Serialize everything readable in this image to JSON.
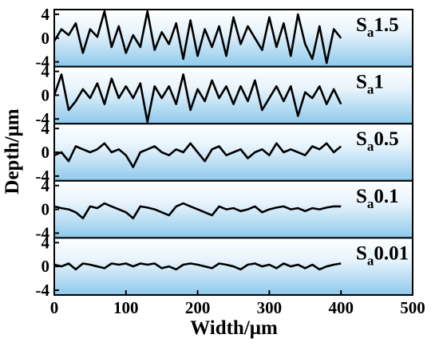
{
  "chart_data": {
    "type": "line",
    "xlabel": "Width/μm",
    "ylabel": "Depth/μm",
    "xlim": [
      0,
      500
    ],
    "ylim": [
      -4.8,
      4.8
    ],
    "x_ticks": [
      "0",
      "100",
      "200",
      "300",
      "400",
      "500"
    ],
    "y_ticks": [
      "4",
      "0",
      "-4"
    ],
    "background": "light-blue vertical gradient",
    "panels": [
      {
        "label": "Sa1.5",
        "label_prefix": "S",
        "label_sub": "a",
        "label_value": "1.5",
        "x": [
          0,
          10,
          20,
          30,
          40,
          50,
          60,
          70,
          80,
          90,
          100,
          110,
          120,
          130,
          140,
          150,
          160,
          170,
          180,
          190,
          200,
          210,
          220,
          230,
          240,
          250,
          260,
          270,
          280,
          290,
          300,
          310,
          320,
          330,
          340,
          350,
          360,
          370,
          380,
          390,
          400
        ],
        "values": [
          -0.5,
          1.5,
          0.5,
          2.5,
          -2.5,
          1.5,
          0.2,
          4.5,
          -1.5,
          2,
          -2.5,
          0.5,
          -1.5,
          4.5,
          -2,
          1,
          -1,
          2.5,
          -3.5,
          3,
          -3,
          1.5,
          -1.5,
          2,
          -3,
          3.5,
          -1,
          2,
          0,
          -2,
          3.5,
          -1.5,
          2.5,
          -3,
          4,
          -1,
          -3.5,
          2,
          -4.2,
          1.5,
          0
        ]
      },
      {
        "label": "Sa1",
        "label_prefix": "S",
        "label_sub": "a",
        "label_value": "1",
        "x": [
          0,
          10,
          20,
          30,
          40,
          50,
          60,
          70,
          80,
          90,
          100,
          110,
          120,
          130,
          140,
          150,
          160,
          170,
          180,
          190,
          200,
          210,
          220,
          230,
          240,
          250,
          260,
          270,
          280,
          290,
          300,
          310,
          320,
          330,
          340,
          350,
          360,
          370,
          380,
          390,
          400
        ],
        "values": [
          0,
          3.5,
          -2.5,
          -1,
          1,
          -0.5,
          2,
          -1.5,
          2.8,
          -0.5,
          1.5,
          -0.5,
          2,
          -4.5,
          1.5,
          -0.5,
          1.5,
          -1.5,
          3.5,
          -2.5,
          1,
          -1,
          2.5,
          -0.5,
          1.5,
          -1.5,
          1.5,
          -1,
          2.5,
          -2.5,
          -0.5,
          1.5,
          -1,
          1.5,
          -3.5,
          0.5,
          -0.5,
          1.5,
          -1.5,
          1,
          -1.5
        ]
      },
      {
        "label": "Sa0.5",
        "label_prefix": "S",
        "label_sub": "a",
        "label_value": "0.5",
        "x": [
          0,
          10,
          20,
          30,
          40,
          50,
          60,
          70,
          80,
          90,
          100,
          110,
          120,
          130,
          140,
          150,
          160,
          170,
          180,
          190,
          200,
          210,
          220,
          230,
          240,
          250,
          260,
          270,
          280,
          290,
          300,
          310,
          320,
          330,
          340,
          350,
          360,
          370,
          380,
          390,
          400
        ],
        "values": [
          -0.5,
          0,
          -1.5,
          1,
          0.5,
          0,
          0.5,
          1.5,
          0,
          0.5,
          -0.5,
          -2.5,
          0,
          0.5,
          1,
          0,
          -0.5,
          0.5,
          0,
          1.5,
          0,
          -1.5,
          0.5,
          1,
          -0.5,
          0,
          0.5,
          -1,
          0,
          0.5,
          -0.5,
          1.5,
          0,
          0.5,
          0,
          -0.5,
          1,
          0.5,
          1.5,
          0,
          1
        ]
      },
      {
        "label": "Sa0.1",
        "label_prefix": "S",
        "label_sub": "a",
        "label_value": "0.1",
        "x": [
          0,
          10,
          20,
          30,
          40,
          50,
          60,
          70,
          80,
          90,
          100,
          110,
          120,
          130,
          140,
          150,
          160,
          170,
          180,
          190,
          200,
          210,
          220,
          230,
          240,
          250,
          260,
          270,
          280,
          290,
          300,
          310,
          320,
          330,
          340,
          350,
          360,
          370,
          380,
          390,
          400
        ],
        "values": [
          0.5,
          0.2,
          0,
          -0.5,
          -1.5,
          0.5,
          0.2,
          1,
          0.5,
          0,
          -0.5,
          -1.5,
          0.5,
          0.3,
          0,
          -0.5,
          -1,
          0.5,
          1,
          0.5,
          0,
          -0.5,
          -1,
          0.5,
          0,
          0.2,
          -0.3,
          0,
          0.5,
          -0.5,
          0,
          0.3,
          0.5,
          0,
          0.2,
          -0.3,
          0.2,
          0,
          0.3,
          0.5,
          0.5
        ]
      },
      {
        "label": "Sa0.01",
        "label_prefix": "S",
        "label_sub": "a",
        "label_value": "0.01",
        "x": [
          0,
          10,
          20,
          30,
          40,
          50,
          60,
          70,
          80,
          90,
          100,
          110,
          120,
          130,
          140,
          150,
          160,
          170,
          180,
          190,
          200,
          210,
          220,
          230,
          240,
          250,
          260,
          270,
          280,
          290,
          300,
          310,
          320,
          330,
          340,
          350,
          360,
          370,
          380,
          390,
          400
        ],
        "values": [
          0.3,
          0,
          0.5,
          -0.5,
          0.5,
          0.3,
          0,
          -0.3,
          0.5,
          0.3,
          0.5,
          0,
          0.5,
          0.3,
          0.5,
          -0.3,
          0,
          -0.5,
          0.3,
          0.5,
          0.3,
          0,
          -0.3,
          0.5,
          0.3,
          0,
          -0.5,
          0.3,
          0.5,
          0,
          0.3,
          -0.3,
          0.5,
          0,
          0.3,
          -0.3,
          0.3,
          -0.5,
          0,
          0.3,
          0.5
        ]
      }
    ]
  }
}
